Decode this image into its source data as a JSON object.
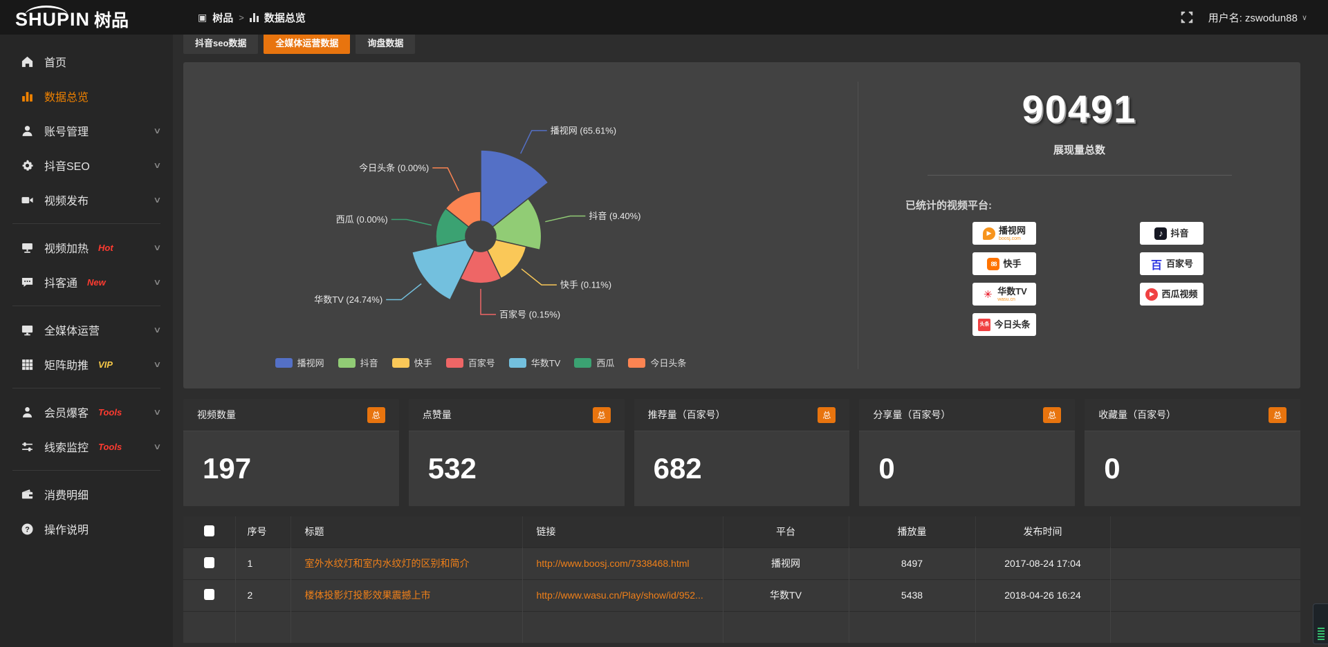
{
  "header": {
    "logo_en": "SHUPIN",
    "logo_cn": "树品",
    "breadcrumb": {
      "root": "树品",
      "separator": ">",
      "current": "数据总览"
    },
    "user_label": "用户名: zswodun88"
  },
  "sidebar": {
    "items": [
      {
        "id": "home",
        "label": "首页",
        "icon": "home"
      },
      {
        "id": "data-overview",
        "label": "数据总览",
        "icon": "chart",
        "active": true
      },
      {
        "id": "account-manage",
        "label": "账号管理",
        "icon": "user",
        "chevron": true
      },
      {
        "id": "douyin-seo",
        "label": "抖音SEO",
        "icon": "gear",
        "chevron": true
      },
      {
        "id": "video-publish",
        "label": "视频发布",
        "icon": "publish",
        "chevron": true,
        "divider_after": true
      },
      {
        "id": "video-heat",
        "label": "视频加热",
        "icon": "heat",
        "badge": "Hot",
        "badge_color": "#ff3b30",
        "chevron": true
      },
      {
        "id": "douketong",
        "label": "抖客通",
        "icon": "chat",
        "badge": "New",
        "badge_color": "#ff3b30",
        "chevron": true,
        "divider_after": true
      },
      {
        "id": "media-operation",
        "label": "全媒体运营",
        "icon": "monitor",
        "chevron": true
      },
      {
        "id": "matrix-boost",
        "label": "矩阵助推",
        "icon": "grid",
        "badge": "VIP",
        "badge_color": "#f7c948",
        "chevron": true,
        "divider_after": true
      },
      {
        "id": "member-burst",
        "label": "会员爆客",
        "icon": "person",
        "badge": "Tools",
        "badge_color": "#ff3b30",
        "chevron": true
      },
      {
        "id": "clue-monitor",
        "label": "线索监控",
        "icon": "sliders",
        "badge": "Tools",
        "badge_color": "#ff3b30",
        "chevron": true,
        "divider_after": true
      },
      {
        "id": "consumption-detail",
        "label": "消费明细",
        "icon": "wallet"
      },
      {
        "id": "instructions",
        "label": "操作说明",
        "icon": "question"
      }
    ]
  },
  "tabs": [
    {
      "label": "抖音seo数据",
      "active": false
    },
    {
      "label": "全媒体运营数据",
      "active": true
    },
    {
      "label": "询盘数据",
      "active": false
    }
  ],
  "chart_data": {
    "type": "pie",
    "subtype": "nightingale-rose",
    "title": "",
    "legend_position": "bottom",
    "label_format": "{name} ({percent}%)",
    "items": [
      {
        "name": "播视网",
        "percent": 65.61,
        "color": "#5470c6"
      },
      {
        "name": "抖音",
        "percent": 9.4,
        "color": "#91cc75"
      },
      {
        "name": "快手",
        "percent": 0.11,
        "color": "#fac858"
      },
      {
        "name": "百家号",
        "percent": 0.15,
        "color": "#ee6666"
      },
      {
        "name": "华数TV",
        "percent": 24.74,
        "color": "#73c0de"
      },
      {
        "name": "西瓜",
        "percent": 0.0,
        "color": "#3ba272"
      },
      {
        "name": "今日头条",
        "percent": 0.0,
        "color": "#fc8452"
      }
    ]
  },
  "overview": {
    "total_value": "90491",
    "total_label": "展现量总数",
    "platforms_label": "已统计的视频平台:",
    "platforms": [
      {
        "name": "播视网",
        "sub": "boosj.com",
        "icon": "boosj"
      },
      {
        "name": "抖音",
        "icon": "douyin"
      },
      {
        "name": "快手",
        "icon": "kuaishou"
      },
      {
        "name": "百家号",
        "icon": "baijia"
      },
      {
        "name": "华数TV",
        "sub": "wasu.cn",
        "icon": "wasu"
      },
      {
        "name": "西瓜视频",
        "icon": "xigua"
      },
      {
        "name": "今日头条",
        "icon": "toutiao"
      }
    ]
  },
  "stat_cards": [
    {
      "title": "视频数量",
      "badge": "总",
      "value": "197"
    },
    {
      "title": "点赞量",
      "badge": "总",
      "value": "532"
    },
    {
      "title": "推荐量（百家号）",
      "badge": "总",
      "value": "682"
    },
    {
      "title": "分享量（百家号）",
      "badge": "总",
      "value": "0"
    },
    {
      "title": "收藏量（百家号）",
      "badge": "总",
      "value": "0"
    }
  ],
  "table": {
    "headers": [
      "",
      "序号",
      "标题",
      "链接",
      "平台",
      "播放量",
      "发布时间",
      ""
    ],
    "rows": [
      {
        "seq": "1",
        "title": "室外水纹灯和室内水纹灯的区别和简介",
        "link": "http://www.boosj.com/7338468.html",
        "platform": "播视网",
        "plays": "8497",
        "time": "2017-08-24 17:04"
      },
      {
        "seq": "2",
        "title": "楼体投影灯投影效果震撼上市",
        "link": "http://www.wasu.cn/Play/show/id/952...",
        "platform": "华数TV",
        "plays": "5438",
        "time": "2018-04-26 16:24"
      }
    ]
  },
  "colors": {
    "accent": "#e8740e",
    "link": "#f08019",
    "sidebar_active": "#f08200"
  }
}
